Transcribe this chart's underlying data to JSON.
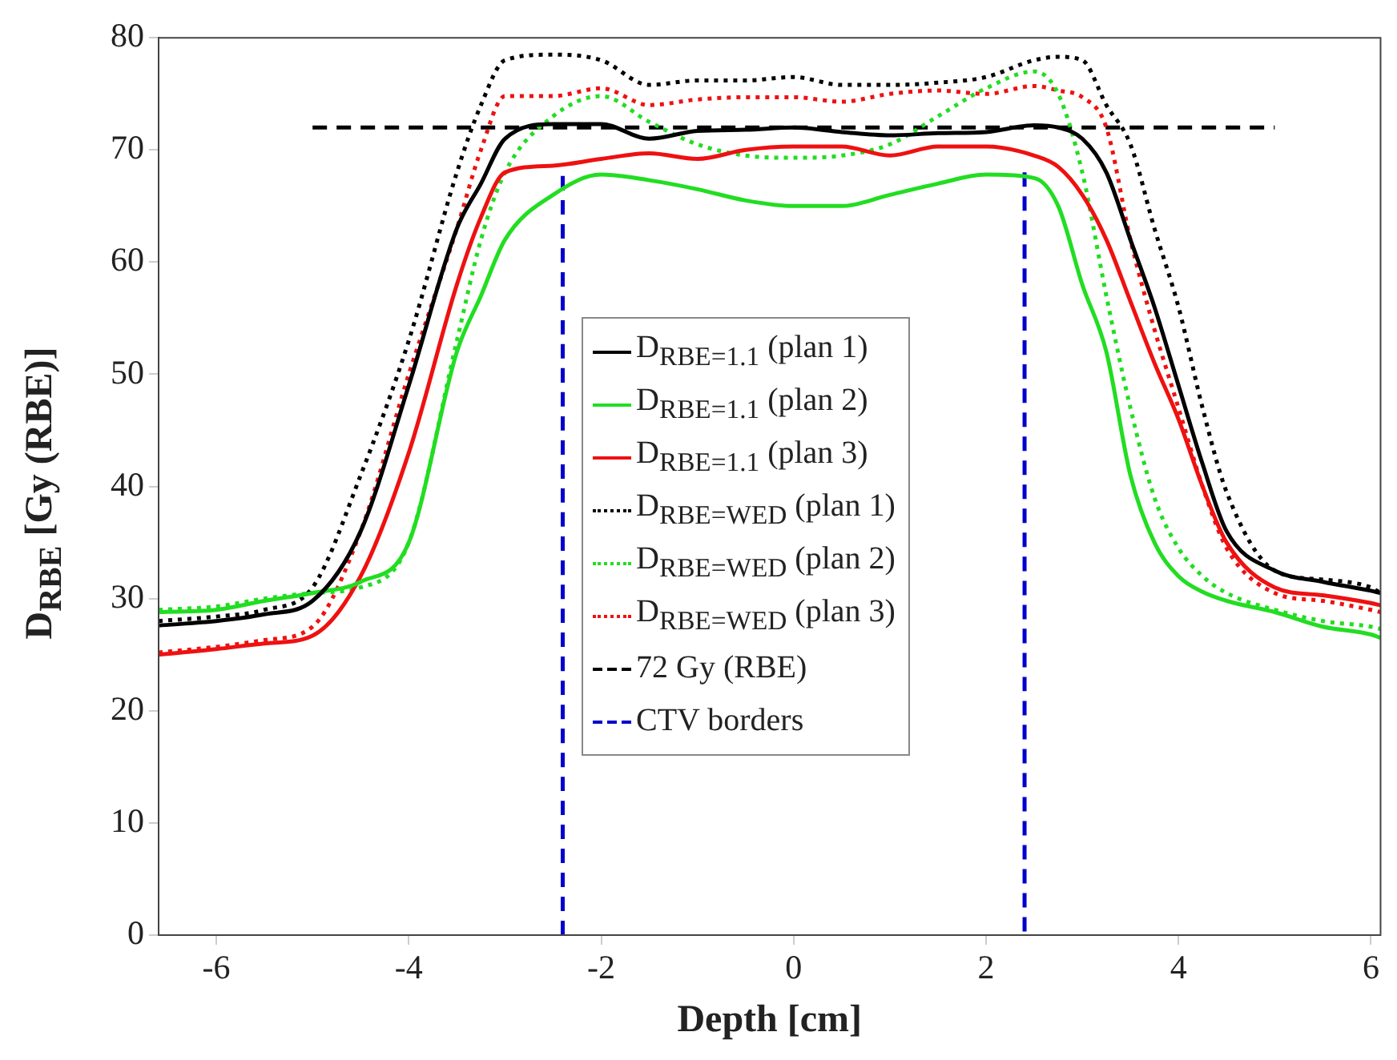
{
  "chart_data": {
    "type": "line",
    "xlabel": "Depth [cm]",
    "ylabel": "D$_{RBE}$ [Gy (RBE)]",
    "x": [
      -6.6,
      -6,
      -5.5,
      -5,
      -4.5,
      -4,
      -3.5,
      -3.25,
      -3,
      -2.5,
      -2,
      -1.5,
      -1,
      -0.5,
      0,
      0.5,
      1,
      1.5,
      2,
      2.5,
      2.75,
      3,
      3.25,
      3.5,
      3.75,
      4,
      4.25,
      4.5,
      5,
      5.5,
      6,
      6.1
    ],
    "series": [
      {
        "name": "D$_{RBE=1.1}$ (plan 1)",
        "color": "#000000",
        "line_style": "solid",
        "values": [
          27.6,
          28,
          28.6,
          29.8,
          36,
          49,
          63,
          67,
          71,
          72.3,
          72.3,
          71,
          71.7,
          71.8,
          72,
          71.6,
          71.3,
          71.5,
          71.6,
          72.2,
          72,
          71,
          68,
          62,
          56,
          49,
          42,
          36,
          32.5,
          31.5,
          30.7,
          30.5
        ]
      },
      {
        "name": "D$_{RBE=1.1}$ (plan 2)",
        "color": "#22dd22",
        "line_style": "solid",
        "values": [
          28.8,
          29,
          29.8,
          30.5,
          31.5,
          35,
          52,
          57,
          62,
          66,
          67.8,
          67.3,
          66.5,
          65.5,
          65,
          65,
          66,
          67,
          67.8,
          67.5,
          65,
          58,
          52,
          41,
          35,
          32,
          30.6,
          29.8,
          28.8,
          27.5,
          26.8,
          26.5
        ]
      },
      {
        "name": "D$_{RBE=1.1}$ (plan 3)",
        "color": "#ee1111",
        "line_style": "solid",
        "values": [
          25,
          25.5,
          26,
          26.7,
          32,
          43,
          58,
          64,
          68,
          68.6,
          69.2,
          69.7,
          69.2,
          70,
          70.3,
          70.3,
          69.5,
          70.3,
          70.3,
          69.5,
          68.5,
          66,
          62,
          56.5,
          51,
          46,
          40,
          35,
          31,
          30.3,
          29.6,
          29.4
        ]
      },
      {
        "name": "D$_{RBE=WED}$ (plan 1)",
        "color": "#000000",
        "line_style": "dotted",
        "values": [
          28,
          28.4,
          29,
          31,
          41,
          53,
          68,
          74,
          78,
          78.5,
          78,
          75.8,
          76.2,
          76.2,
          76.5,
          75.8,
          75.8,
          76,
          76.5,
          78,
          78.3,
          78,
          74,
          70.5,
          63,
          56,
          47,
          39.5,
          32.5,
          31.7,
          31,
          30.5
        ]
      },
      {
        "name": "D$_{RBE=WED}$ (plan 2)",
        "color": "#22dd22",
        "line_style": "dotted",
        "values": [
          29,
          29.3,
          30,
          30.5,
          31,
          35,
          53,
          62,
          68,
          73,
          74.8,
          72.5,
          70.5,
          69.5,
          69.3,
          69.5,
          70.5,
          73,
          75.5,
          77,
          75,
          68,
          57,
          47,
          39,
          34.5,
          32,
          30.5,
          29,
          28,
          27.5,
          27.3
        ]
      },
      {
        "name": "D$_{RBE=WED}$ (plan 3)",
        "color": "#ee1111",
        "line_style": "dotted",
        "values": [
          25.2,
          25.7,
          26.3,
          27.5,
          36,
          50,
          63,
          70,
          74.8,
          74.8,
          75.5,
          74,
          74.5,
          74.7,
          74.7,
          74.3,
          75,
          75.3,
          75,
          75.7,
          75.3,
          74.7,
          72,
          62,
          54,
          47,
          40,
          34.5,
          30.5,
          29.8,
          29,
          28.8
        ]
      },
      {
        "name": "72 Gy (RBE)",
        "color": "#000000",
        "line_style": "dashed",
        "x": [
          -5,
          5
        ],
        "values": [
          72,
          72
        ]
      },
      {
        "name": "CTV borders",
        "color": "#0000cc",
        "line_style": "dashed",
        "x": [
          -2.4,
          -2.4,
          0,
          2.4,
          2.4
        ],
        "values": [
          0,
          68,
          null,
          68,
          0
        ]
      }
    ],
    "xlim": [
      -6.6,
      6.1
    ],
    "xticks": [
      -6,
      -4,
      -2,
      0,
      2,
      4,
      6
    ],
    "ylim": [
      0,
      80
    ],
    "yticks": [
      0,
      10,
      20,
      30,
      40,
      50,
      60,
      70,
      80
    ],
    "grid": false,
    "legend": "center left",
    "marker": "none"
  }
}
